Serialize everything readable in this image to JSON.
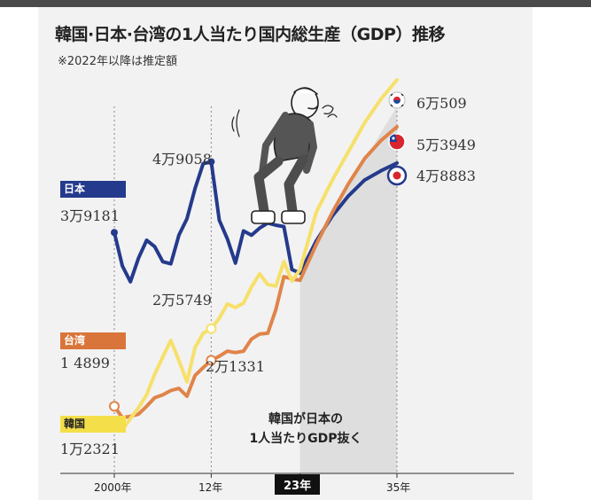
{
  "title": "韓国·日本·台湾の1人当たり国内総生産（GDP）推移",
  "note": "※2022年以降は推定額",
  "annotation": [
    "韓国が日本の",
    "1人当たりGDP抜く"
  ],
  "colors": {
    "japan": "#243a8c",
    "taiwan": "#e0844a",
    "korea": "#f7e06a",
    "shade": "#dedede",
    "panel": "#f2f2f2"
  },
  "labels": {
    "japan": "日本",
    "taiwan": "台湾",
    "korea": "韓国",
    "japan_2000": "3万9181",
    "japan_2012": "4万9058",
    "japan_2035": "4万8883",
    "taiwan_2000": "1 4899",
    "taiwan_2012": "2万1331",
    "taiwan_2035": "5万3949",
    "korea_2000": "1万2321",
    "korea_2012": "2万5749",
    "korea_2035": "6万509"
  },
  "chart_data": {
    "type": "line",
    "title": "韓国·日本·台湾の1人当たり国内総生産（GDP）推移",
    "x_ticks": [
      "2000年",
      "12年",
      "23年",
      "35年"
    ],
    "highlight_tick": "23年",
    "shaded_from": 2023,
    "estimate_from": 2022,
    "series": [
      {
        "name": "日本",
        "color": "#243a8c",
        "x": [
          2000,
          2001,
          2002,
          2003,
          2004,
          2005,
          2006,
          2007,
          2008,
          2009,
          2010,
          2011,
          2012,
          2013,
          2014,
          2015,
          2016,
          2017,
          2018,
          2019,
          2020,
          2021,
          2022,
          2023,
          2025,
          2027,
          2029,
          2031,
          2033,
          2035
        ],
        "values": [
          39181,
          34500,
          32300,
          35600,
          38100,
          37200,
          35100,
          34800,
          38800,
          41100,
          45300,
          48800,
          49058,
          40900,
          38300,
          34900,
          39400,
          38800,
          39800,
          40500,
          40200,
          40000,
          34000,
          33500,
          38000,
          41500,
          44300,
          46500,
          47800,
          48883
        ]
      },
      {
        "name": "台湾",
        "color": "#e0844a",
        "x": [
          2000,
          2001,
          2002,
          2003,
          2004,
          2005,
          2006,
          2007,
          2008,
          2009,
          2010,
          2011,
          2012,
          2013,
          2014,
          2015,
          2016,
          2017,
          2018,
          2019,
          2020,
          2021,
          2022,
          2023,
          2025,
          2027,
          2029,
          2031,
          2033,
          2035
        ],
        "values": [
          14899,
          13300,
          13500,
          13800,
          14900,
          16100,
          16500,
          17100,
          17400,
          16300,
          19200,
          20300,
          21331,
          21900,
          22600,
          22400,
          22600,
          24300,
          25000,
          25100,
          28400,
          33000,
          32700,
          32500,
          37500,
          42000,
          46000,
          49500,
          52000,
          53949
        ]
      },
      {
        "name": "韓国",
        "color": "#f7e06a",
        "x": [
          2000,
          2001,
          2002,
          2003,
          2004,
          2005,
          2006,
          2007,
          2008,
          2009,
          2010,
          2011,
          2012,
          2013,
          2014,
          2015,
          2016,
          2017,
          2018,
          2019,
          2020,
          2021,
          2022,
          2023,
          2025,
          2027,
          2029,
          2031,
          2033,
          2035
        ],
        "values": [
          12321,
          11600,
          13200,
          14700,
          16500,
          19400,
          21800,
          24100,
          21300,
          18300,
          23100,
          25100,
          25749,
          27200,
          29200,
          28700,
          29300,
          31600,
          33400,
          31900,
          31700,
          35100,
          32400,
          34000,
          42000,
          46500,
          50500,
          54500,
          57800,
          60509
        ]
      }
    ],
    "ylim": [
      8000,
      62000
    ]
  }
}
